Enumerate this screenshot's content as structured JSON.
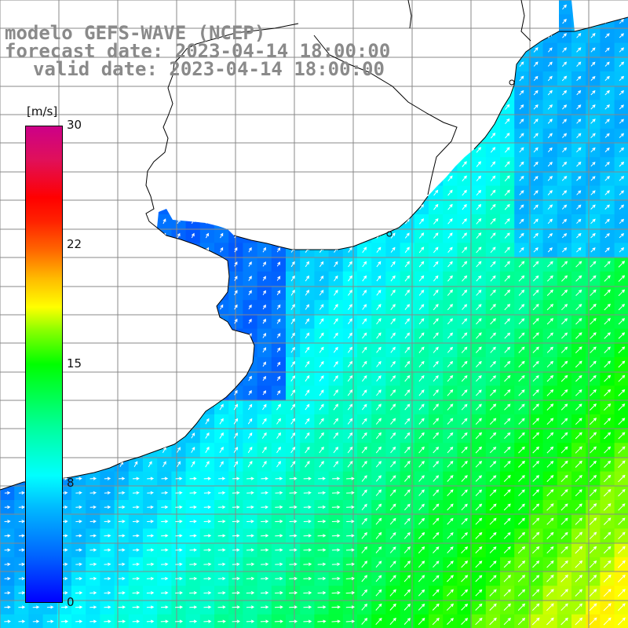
{
  "title": {
    "line1": "modelo GEFS-WAVE (NCEP)",
    "line2": "forecast date: 2023-04-14 18:00:00",
    "line3": "valid date: 2023-04-14 18:00:00"
  },
  "colorbar": {
    "unit_open": "[",
    "unit": "m/s",
    "unit_close": "]",
    "ticks": [
      "30",
      "22",
      "15",
      "8",
      "0"
    ],
    "tick_values": [
      30,
      22,
      15,
      8,
      0
    ],
    "min": 0,
    "max": 30,
    "colors": [
      "#0000ff",
      "#0066ff",
      "#00bbff",
      "#00ffff",
      "#00ff99",
      "#00ff00",
      "#88ff00",
      "#ffff00",
      "#ffbb00",
      "#ff6600",
      "#ff2200",
      "#ff0000",
      "#e0105a",
      "#cc0088"
    ]
  },
  "map": {
    "variable": "wind speed and direction",
    "land_color": "#ffffff",
    "grid_color": "#888888",
    "coast_color": "#000000",
    "arrow_color": "#ffffff",
    "wind_direction": "from the southwest (arrows point northeast)"
  }
}
